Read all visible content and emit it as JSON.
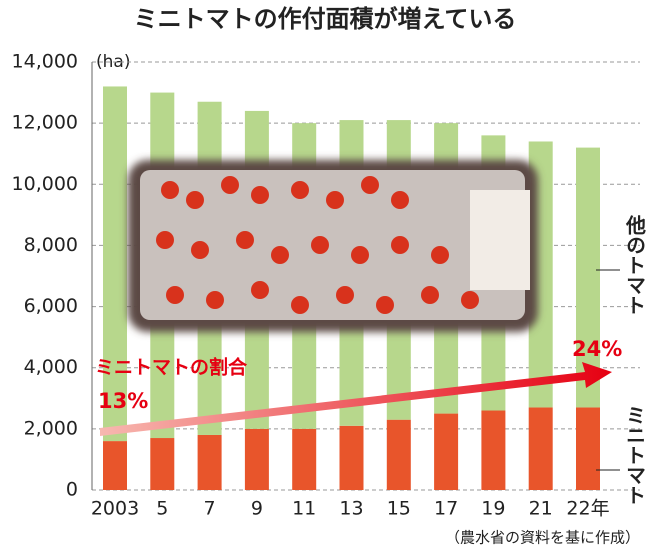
{
  "chart_data": {
    "type": "stacked_bar",
    "title": "ミニトマトの作付面積が増えている",
    "y_label": "(ha)",
    "categories": [
      "2003",
      "5",
      "7",
      "9",
      "11",
      "13",
      "15",
      "17",
      "19",
      "21",
      "22年"
    ],
    "series": [
      {
        "name": "ミニトマト",
        "color": "#e8552b",
        "values": [
          1600,
          1700,
          1800,
          2000,
          2000,
          2100,
          2300,
          2500,
          2600,
          2700,
          2700
        ]
      },
      {
        "name": "他のトマト",
        "color": "#b7d78c",
        "values": [
          11600,
          11300,
          10900,
          10400,
          10000,
          10000,
          9800,
          9500,
          9000,
          8700,
          8500
        ]
      }
    ],
    "ylim": [
      0,
      14000
    ],
    "yticks": [
      0,
      {
        "value": 2000,
        "label": "2,000"
      },
      {
        "value": 4000,
        "label": "4,000"
      },
      {
        "value": 6000,
        "label": "6,000"
      },
      {
        "value": 8000,
        "label": "8,000"
      },
      {
        "value": 10000,
        "label": "10,000"
      },
      {
        "value": 12000,
        "label": "12,000"
      },
      {
        "value": 14000,
        "label": "14,000"
      }
    ],
    "grid": true,
    "annotations": {
      "label": "ミニトマトの割合",
      "start": "13%",
      "end": "24%"
    },
    "source": "（農水省の資料を基に作成）"
  }
}
